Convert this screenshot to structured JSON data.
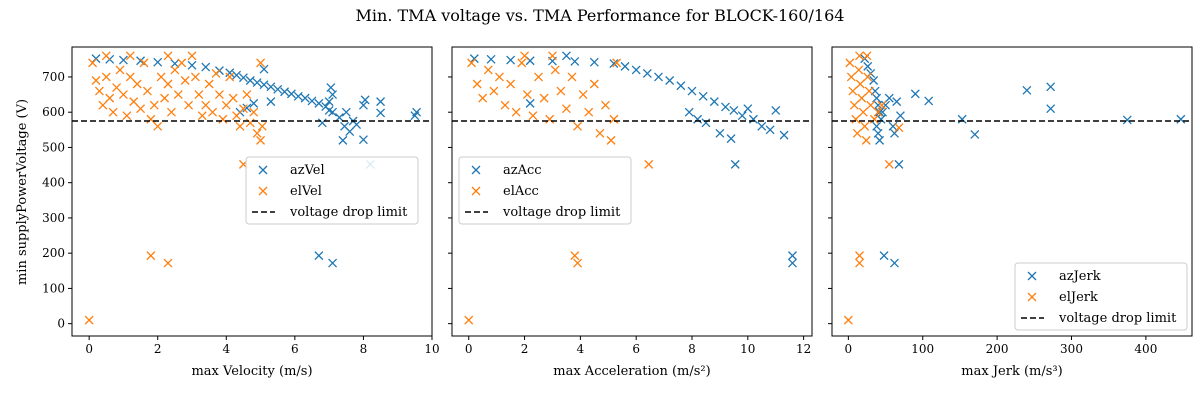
{
  "figure": {
    "title": "Min. TMA voltage vs. TMA Performance for BLOCK-160/164",
    "shared_ylabel": "min supplyPowerVoltage (V)"
  },
  "colors": {
    "az": "#1f77b4",
    "el": "#ff7f0e",
    "limit": "#000000"
  },
  "chart_data": [
    {
      "type": "scatter",
      "xlabel": "max Velocity (m/s)",
      "xlim": [
        -0.5,
        10
      ],
      "ylim": [
        -35,
        785
      ],
      "xticks": [
        0,
        2,
        4,
        6,
        8,
        10
      ],
      "yticks": [
        0,
        100,
        200,
        300,
        400,
        500,
        600,
        700
      ],
      "legend_position": "center-right",
      "voltage_limit": 575,
      "series": [
        {
          "name": "azVel",
          "color": "#1f77b4",
          "points": [
            [
              0.2,
              752
            ],
            [
              0.6,
              750
            ],
            [
              1.0,
              748
            ],
            [
              1.5,
              746
            ],
            [
              2.0,
              742
            ],
            [
              2.5,
              738
            ],
            [
              3.0,
              733
            ],
            [
              3.4,
              728
            ],
            [
              3.8,
              718
            ],
            [
              4.1,
              712
            ],
            [
              4.3,
              705
            ],
            [
              4.5,
              698
            ],
            [
              4.7,
              690
            ],
            [
              4.9,
              684
            ],
            [
              5.1,
              678
            ],
            [
              5.3,
              672
            ],
            [
              5.5,
              665
            ],
            [
              5.7,
              658
            ],
            [
              5.9,
              652
            ],
            [
              6.1,
              645
            ],
            [
              6.3,
              640
            ],
            [
              6.5,
              632
            ],
            [
              6.7,
              625
            ],
            [
              6.9,
              616
            ],
            [
              7.0,
              605
            ],
            [
              7.1,
              600
            ],
            [
              7.05,
              670
            ],
            [
              7.1,
              650
            ],
            [
              7.0,
              630
            ],
            [
              7.3,
              585
            ],
            [
              7.45,
              560
            ],
            [
              7.6,
              545
            ],
            [
              7.7,
              575
            ],
            [
              7.5,
              600
            ],
            [
              7.8,
              565
            ],
            [
              8.0,
              620
            ],
            [
              8.05,
              635
            ],
            [
              8.0,
              522
            ],
            [
              8.5,
              630
            ],
            [
              8.5,
              598
            ],
            [
              9.5,
              590
            ],
            [
              9.55,
              600
            ],
            [
              8.2,
              452
            ],
            [
              6.7,
              193
            ],
            [
              7.1,
              172
            ],
            [
              5.1,
              722
            ],
            [
              4.6,
              612
            ],
            [
              4.8,
              625
            ],
            [
              4.4,
              600
            ],
            [
              5.3,
              630
            ],
            [
              6.8,
              570
            ],
            [
              7.4,
              520
            ]
          ]
        },
        {
          "name": "elVel",
          "color": "#ff7f0e",
          "points": [
            [
              0.0,
              10
            ],
            [
              0.1,
              740
            ],
            [
              0.2,
              690
            ],
            [
              0.3,
              660
            ],
            [
              0.4,
              620
            ],
            [
              0.5,
              700
            ],
            [
              0.6,
              640
            ],
            [
              0.7,
              600
            ],
            [
              0.8,
              670
            ],
            [
              0.9,
              720
            ],
            [
              1.0,
              650
            ],
            [
              1.1,
              590
            ],
            [
              1.2,
              700
            ],
            [
              1.3,
              630
            ],
            [
              1.4,
              680
            ],
            [
              1.5,
              610
            ],
            [
              1.6,
              740
            ],
            [
              1.7,
              660
            ],
            [
              1.8,
              580
            ],
            [
              1.9,
              620
            ],
            [
              2.0,
              560
            ],
            [
              2.1,
              700
            ],
            [
              2.2,
              640
            ],
            [
              2.3,
              680
            ],
            [
              2.4,
              600
            ],
            [
              2.5,
              720
            ],
            [
              2.6,
              650
            ],
            [
              2.7,
              740
            ],
            [
              2.8,
              690
            ],
            [
              2.9,
              620
            ],
            [
              3.0,
              760
            ],
            [
              3.1,
              700
            ],
            [
              3.2,
              650
            ],
            [
              3.3,
              590
            ],
            [
              3.4,
              620
            ],
            [
              3.5,
              680
            ],
            [
              3.6,
              600
            ],
            [
              3.7,
              710
            ],
            [
              3.8,
              650
            ],
            [
              3.9,
              580
            ],
            [
              4.0,
              620
            ],
            [
              4.1,
              700
            ],
            [
              4.2,
              640
            ],
            [
              4.3,
              590
            ],
            [
              4.4,
              560
            ],
            [
              4.5,
              610
            ],
            [
              4.6,
              650
            ],
            [
              4.7,
              570
            ],
            [
              4.8,
              600
            ],
            [
              4.9,
              540
            ],
            [
              5.0,
              520
            ],
            [
              5.05,
              560
            ],
            [
              5.0,
              740
            ],
            [
              2.3,
              760
            ],
            [
              1.2,
              760
            ],
            [
              0.5,
              760
            ],
            [
              4.5,
              452
            ],
            [
              1.8,
              193
            ],
            [
              2.3,
              172
            ]
          ]
        },
        {
          "name": "voltage drop limit",
          "color": "#000000",
          "y": 575
        }
      ]
    },
    {
      "type": "scatter",
      "xlabel": "max Acceleration (m/s²)",
      "xlim": [
        -0.6,
        12.3
      ],
      "ylim": [
        -35,
        785
      ],
      "xticks": [
        0,
        2,
        4,
        6,
        8,
        10,
        12
      ],
      "yticks": [
        0,
        100,
        200,
        300,
        400,
        500,
        600,
        700
      ],
      "legend_position": "center-left",
      "voltage_limit": 575,
      "series": [
        {
          "name": "azAcc",
          "color": "#1f77b4",
          "points": [
            [
              0.2,
              752
            ],
            [
              0.8,
              750
            ],
            [
              1.5,
              748
            ],
            [
              2.2,
              746
            ],
            [
              3.0,
              745
            ],
            [
              3.8,
              744
            ],
            [
              4.5,
              742
            ],
            [
              5.2,
              738
            ],
            [
              5.6,
              730
            ],
            [
              6.0,
              720
            ],
            [
              6.4,
              710
            ],
            [
              6.8,
              700
            ],
            [
              7.2,
              690
            ],
            [
              7.6,
              675
            ],
            [
              8.0,
              660
            ],
            [
              8.4,
              645
            ],
            [
              8.8,
              630
            ],
            [
              9.2,
              615
            ],
            [
              9.5,
              605
            ],
            [
              9.8,
              590
            ],
            [
              10.0,
              610
            ],
            [
              10.2,
              580
            ],
            [
              10.5,
              560
            ],
            [
              10.8,
              550
            ],
            [
              11.0,
              605
            ],
            [
              11.3,
              535
            ],
            [
              9.0,
              540
            ],
            [
              9.4,
              525
            ],
            [
              8.2,
              580
            ],
            [
              8.5,
              570
            ],
            [
              7.9,
              600
            ],
            [
              2.2,
              625
            ],
            [
              3.5,
              760
            ],
            [
              9.55,
              452
            ],
            [
              11.6,
              193
            ],
            [
              11.6,
              172
            ]
          ]
        },
        {
          "name": "elAcc",
          "color": "#ff7f0e",
          "points": [
            [
              0.0,
              10
            ],
            [
              0.1,
              740
            ],
            [
              0.3,
              680
            ],
            [
              0.5,
              640
            ],
            [
              0.7,
              720
            ],
            [
              0.9,
              660
            ],
            [
              1.1,
              700
            ],
            [
              1.3,
              620
            ],
            [
              1.5,
              680
            ],
            [
              1.7,
              600
            ],
            [
              1.9,
              740
            ],
            [
              2.1,
              650
            ],
            [
              2.3,
              590
            ],
            [
              2.5,
              700
            ],
            [
              2.7,
              640
            ],
            [
              2.9,
              580
            ],
            [
              3.1,
              720
            ],
            [
              3.3,
              660
            ],
            [
              3.5,
              610
            ],
            [
              3.7,
              700
            ],
            [
              3.9,
              560
            ],
            [
              4.1,
              650
            ],
            [
              4.3,
              600
            ],
            [
              4.5,
              680
            ],
            [
              4.7,
              540
            ],
            [
              4.9,
              620
            ],
            [
              5.1,
              520
            ],
            [
              5.2,
              580
            ],
            [
              5.3,
              740
            ],
            [
              3.0,
              760
            ],
            [
              2.0,
              760
            ],
            [
              6.45,
              452
            ],
            [
              3.8,
              193
            ],
            [
              3.9,
              172
            ]
          ]
        },
        {
          "name": "voltage drop limit",
          "color": "#000000",
          "y": 575
        }
      ]
    },
    {
      "type": "scatter",
      "xlabel": "max Jerk (m/s³)",
      "xlim": [
        -22,
        462
      ],
      "ylim": [
        -35,
        785
      ],
      "xticks": [
        0,
        100,
        200,
        300,
        400
      ],
      "yticks": [
        0,
        100,
        200,
        300,
        400,
        500,
        600,
        700
      ],
      "legend_position": "bottom-right",
      "voltage_limit": 575,
      "series": [
        {
          "name": "azJerk",
          "color": "#1f77b4",
          "points": [
            [
              22,
              752
            ],
            [
              26,
              730
            ],
            [
              30,
              710
            ],
            [
              34,
              690
            ],
            [
              36,
              660
            ],
            [
              38,
              640
            ],
            [
              40,
              620
            ],
            [
              42,
              600
            ],
            [
              44,
              580
            ],
            [
              38,
              560
            ],
            [
              40,
              540
            ],
            [
              42,
              520
            ],
            [
              46,
              600
            ],
            [
              50,
              620
            ],
            [
              55,
              640
            ],
            [
              60,
              560
            ],
            [
              62,
              540
            ],
            [
              65,
              630
            ],
            [
              70,
              590
            ],
            [
              90,
              652
            ],
            [
              108,
              632
            ],
            [
              153,
              580
            ],
            [
              170,
              537
            ],
            [
              240,
              662
            ],
            [
              272,
              672
            ],
            [
              272,
              610
            ],
            [
              375,
              578
            ],
            [
              447,
              580
            ],
            [
              68,
              452
            ],
            [
              48,
              193
            ],
            [
              62,
              172
            ]
          ]
        },
        {
          "name": "elJerk",
          "color": "#ff7f0e",
          "points": [
            [
              0,
              10
            ],
            [
              2,
              740
            ],
            [
              4,
              700
            ],
            [
              6,
              660
            ],
            [
              8,
              620
            ],
            [
              10,
              580
            ],
            [
              12,
              540
            ],
            [
              14,
              720
            ],
            [
              16,
              680
            ],
            [
              18,
              640
            ],
            [
              20,
              600
            ],
            [
              22,
              560
            ],
            [
              24,
              520
            ],
            [
              26,
              700
            ],
            [
              28,
              660
            ],
            [
              30,
              620
            ],
            [
              15,
              760
            ],
            [
              25,
              760
            ],
            [
              35,
              580
            ],
            [
              40,
              600
            ],
            [
              45,
              620
            ],
            [
              55,
              452
            ],
            [
              15,
              193
            ],
            [
              15,
              172
            ],
            [
              68,
              556
            ]
          ]
        },
        {
          "name": "voltage drop limit",
          "color": "#000000",
          "y": 575
        }
      ]
    }
  ]
}
